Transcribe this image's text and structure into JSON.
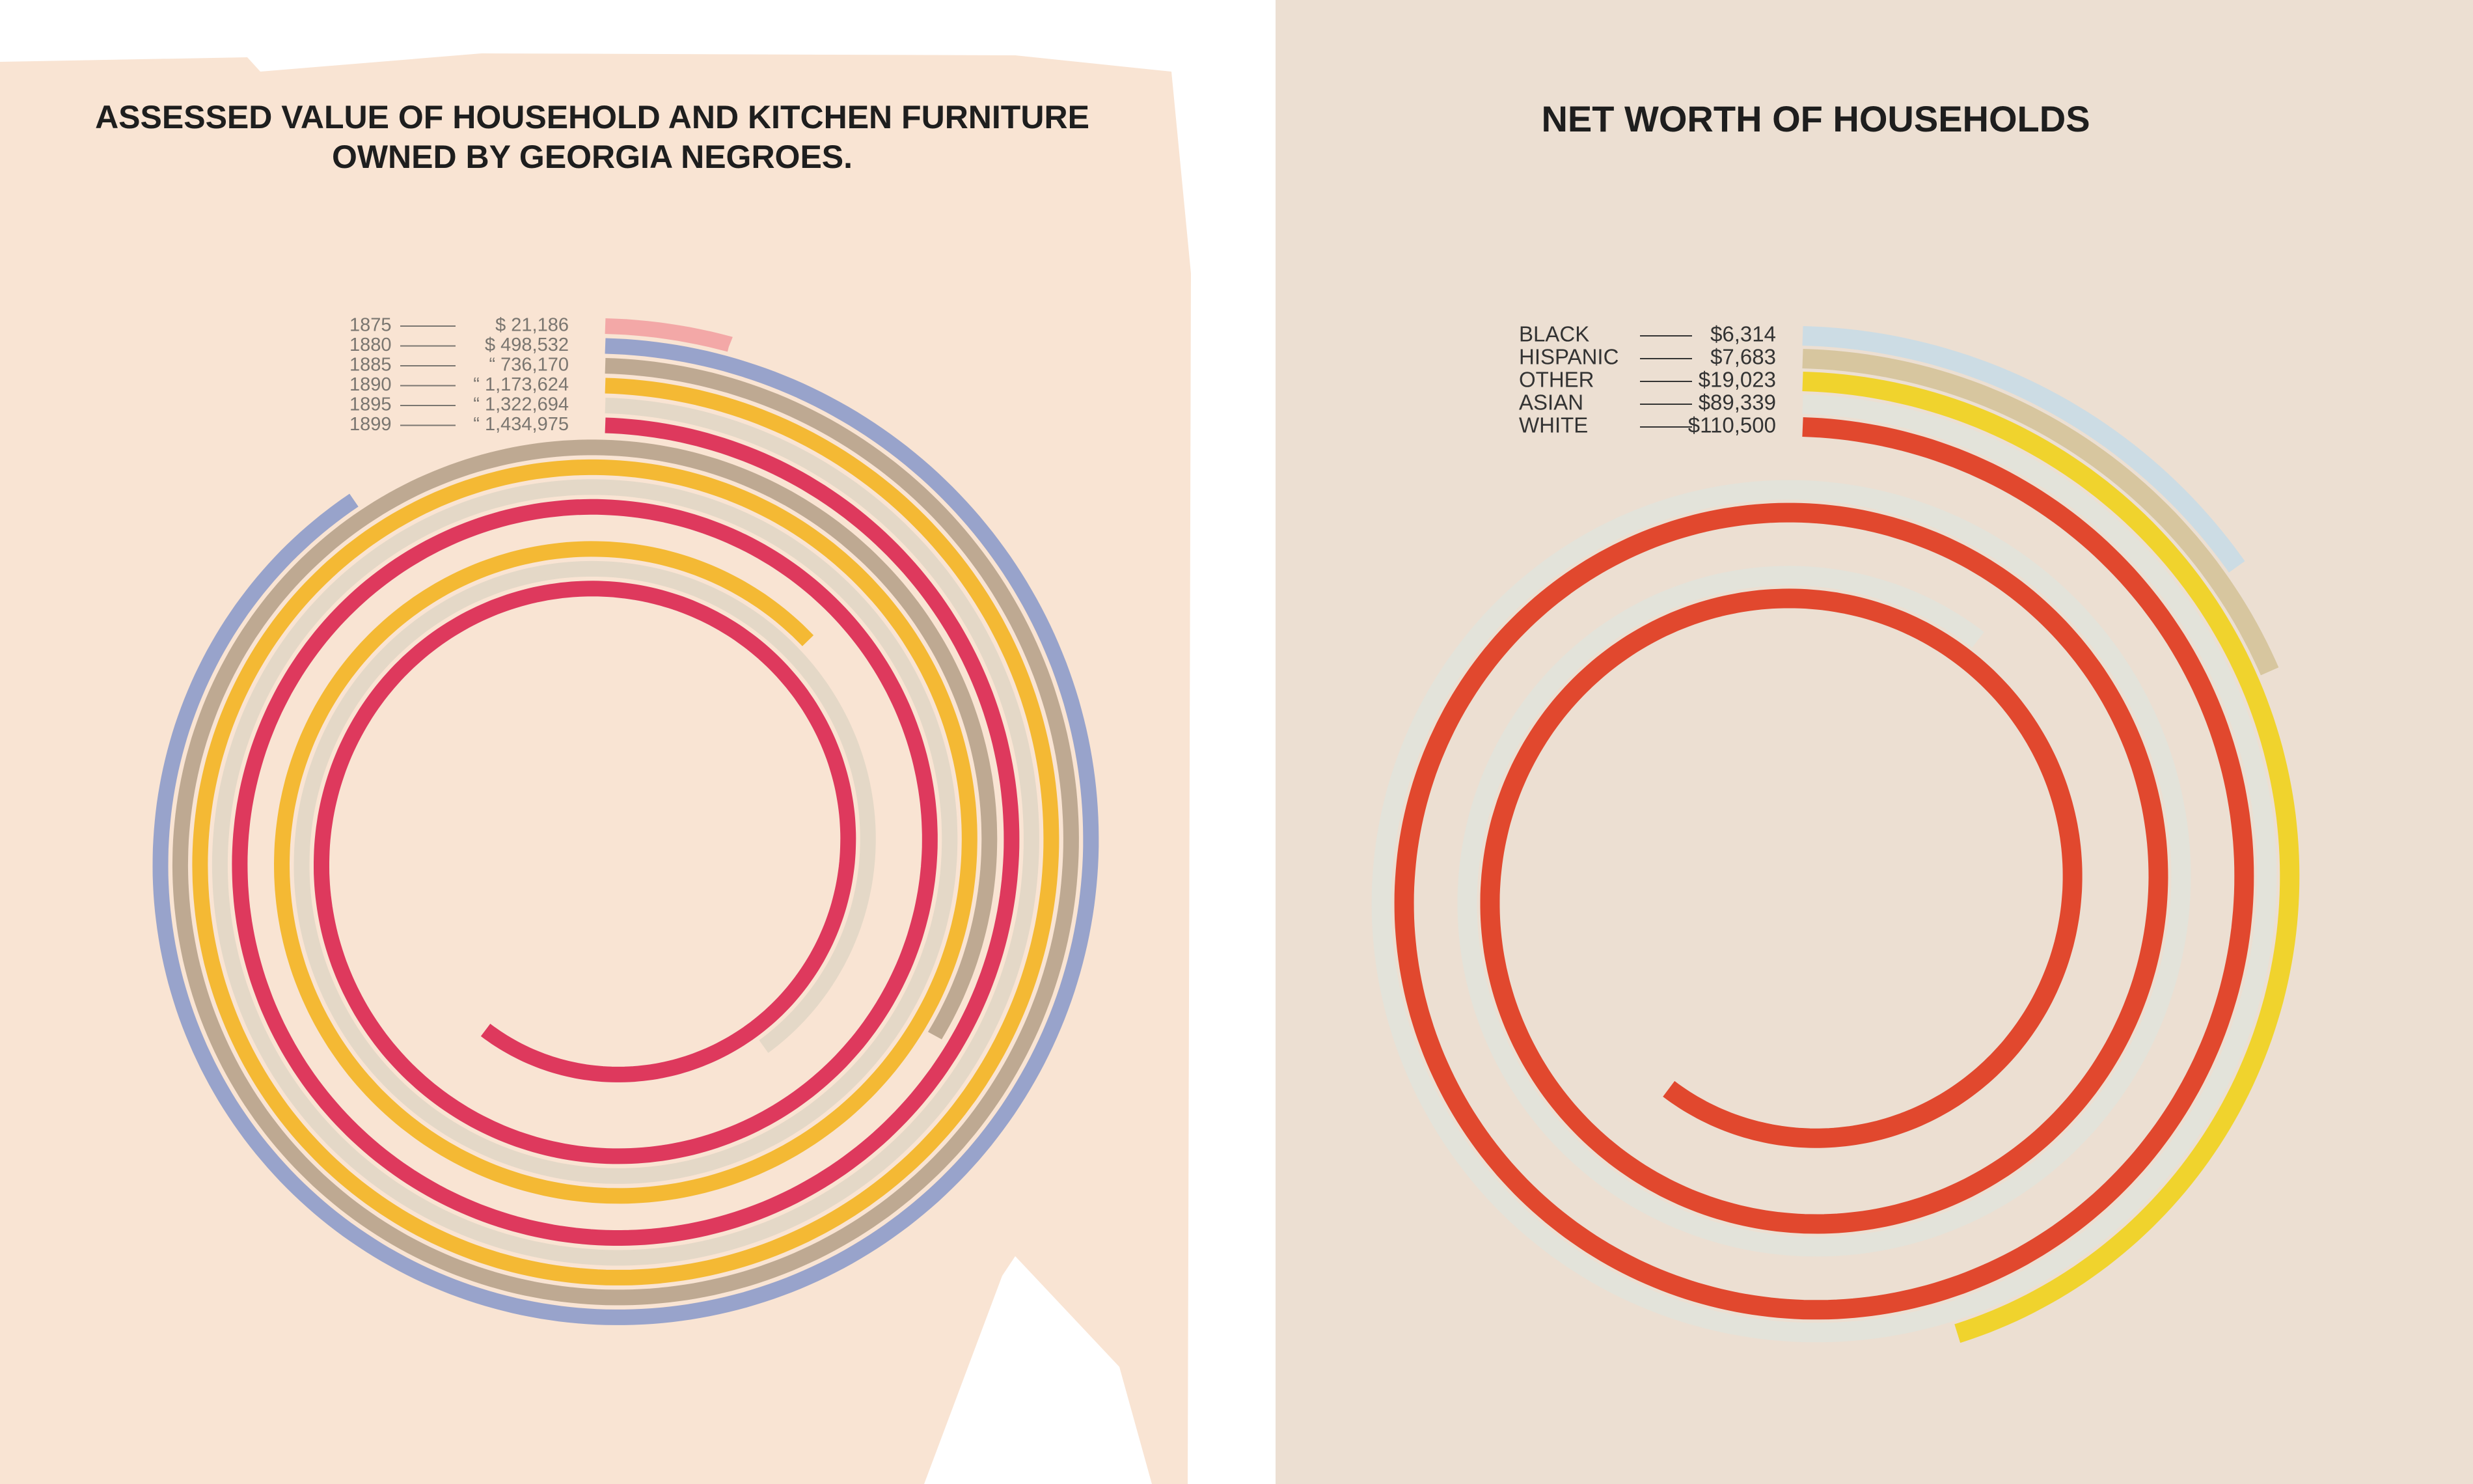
{
  "chart_data": [
    {
      "type": "spiral",
      "title": [
        "ASSESSED VALUE OF HOUSEHOLD AND KITCHEN FURNITURE",
        "OWNED BY GEORGIA NEGROES."
      ],
      "categories": [
        "1875",
        "1880",
        "1885",
        "1890",
        "1895",
        "1899"
      ],
      "values": [
        21186,
        498532,
        736170,
        1173624,
        1322694,
        1434975
      ],
      "value_labels": [
        "$ 21,186",
        "$ 498,532",
        "“ 736,170",
        "“ 1,173,624",
        "“ 1,322,694",
        "“ 1,434,975"
      ],
      "colors": [
        "#f2a3a3",
        "#8f9dca",
        "#b9a48c",
        "#f3b526",
        "#e2d7c6",
        "#db2a52"
      ]
    },
    {
      "type": "spiral",
      "title": [
        "NET WORTH OF HOUSEHOLDS"
      ],
      "categories": [
        "BLACK",
        "HISPANIC",
        "OTHER",
        "ASIAN",
        "WHITE"
      ],
      "values": [
        6314,
        7683,
        19023,
        89339,
        110500
      ],
      "value_labels": [
        "$6,314",
        "$7,683",
        "$19,023",
        "$89,339",
        "$110,500"
      ],
      "colors": [
        "#c9dbe5",
        "#d5c39a",
        "#f0d11e",
        "#e2e3da",
        "#e03b1f"
      ]
    }
  ]
}
